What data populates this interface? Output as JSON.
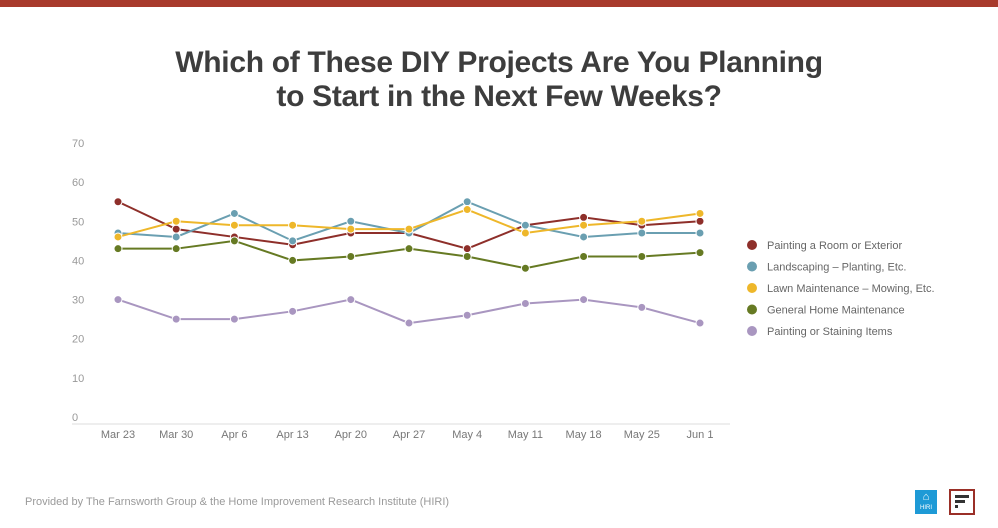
{
  "chart_data": {
    "type": "line",
    "title": "Which of These DIY Projects Are You Planning to Start in the Next Few Weeks?",
    "title_lines": [
      "Which of These DIY Projects Are You Planning",
      "to Start in the Next Few Weeks?"
    ],
    "categories": [
      "Mar 23",
      "Mar 30",
      "Apr 6",
      "Apr 13",
      "Apr 20",
      "Apr 27",
      "May 4",
      "May 11",
      "May 18",
      "May 25",
      "Jun 1"
    ],
    "ylim": [
      0,
      70
    ],
    "yticks": [
      0,
      10,
      20,
      30,
      40,
      50,
      60,
      70
    ],
    "grid": false,
    "legend": "right",
    "series": [
      {
        "name": "Painting a Room or Exterior",
        "color": "#8e2f2a",
        "values": [
          55,
          48,
          46,
          44,
          47,
          47,
          43,
          49,
          51,
          49,
          50
        ]
      },
      {
        "name": "Landscaping – Planting, Etc.",
        "color": "#6a9fb1",
        "values": [
          47,
          46,
          52,
          45,
          50,
          47,
          55,
          49,
          46,
          47,
          47
        ]
      },
      {
        "name": "Lawn Maintenance – Mowing, Etc.",
        "color": "#eeb72a",
        "values": [
          46,
          50,
          49,
          49,
          48,
          48,
          53,
          47,
          49,
          50,
          52
        ]
      },
      {
        "name": "General Home Maintenance",
        "color": "#667a23",
        "values": [
          43,
          43,
          45,
          40,
          41,
          43,
          41,
          38,
          41,
          41,
          42
        ]
      },
      {
        "name": "Painting or Staining Items",
        "color": "#a996c0",
        "values": [
          30,
          25,
          25,
          27,
          30,
          24,
          26,
          29,
          30,
          28,
          24
        ]
      }
    ]
  },
  "footer": "Provided by The Farnsworth Group & the Home Improvement Research Institute (HIRI)",
  "logos": {
    "hiri": "HIRI",
    "farnsworth": "F"
  }
}
